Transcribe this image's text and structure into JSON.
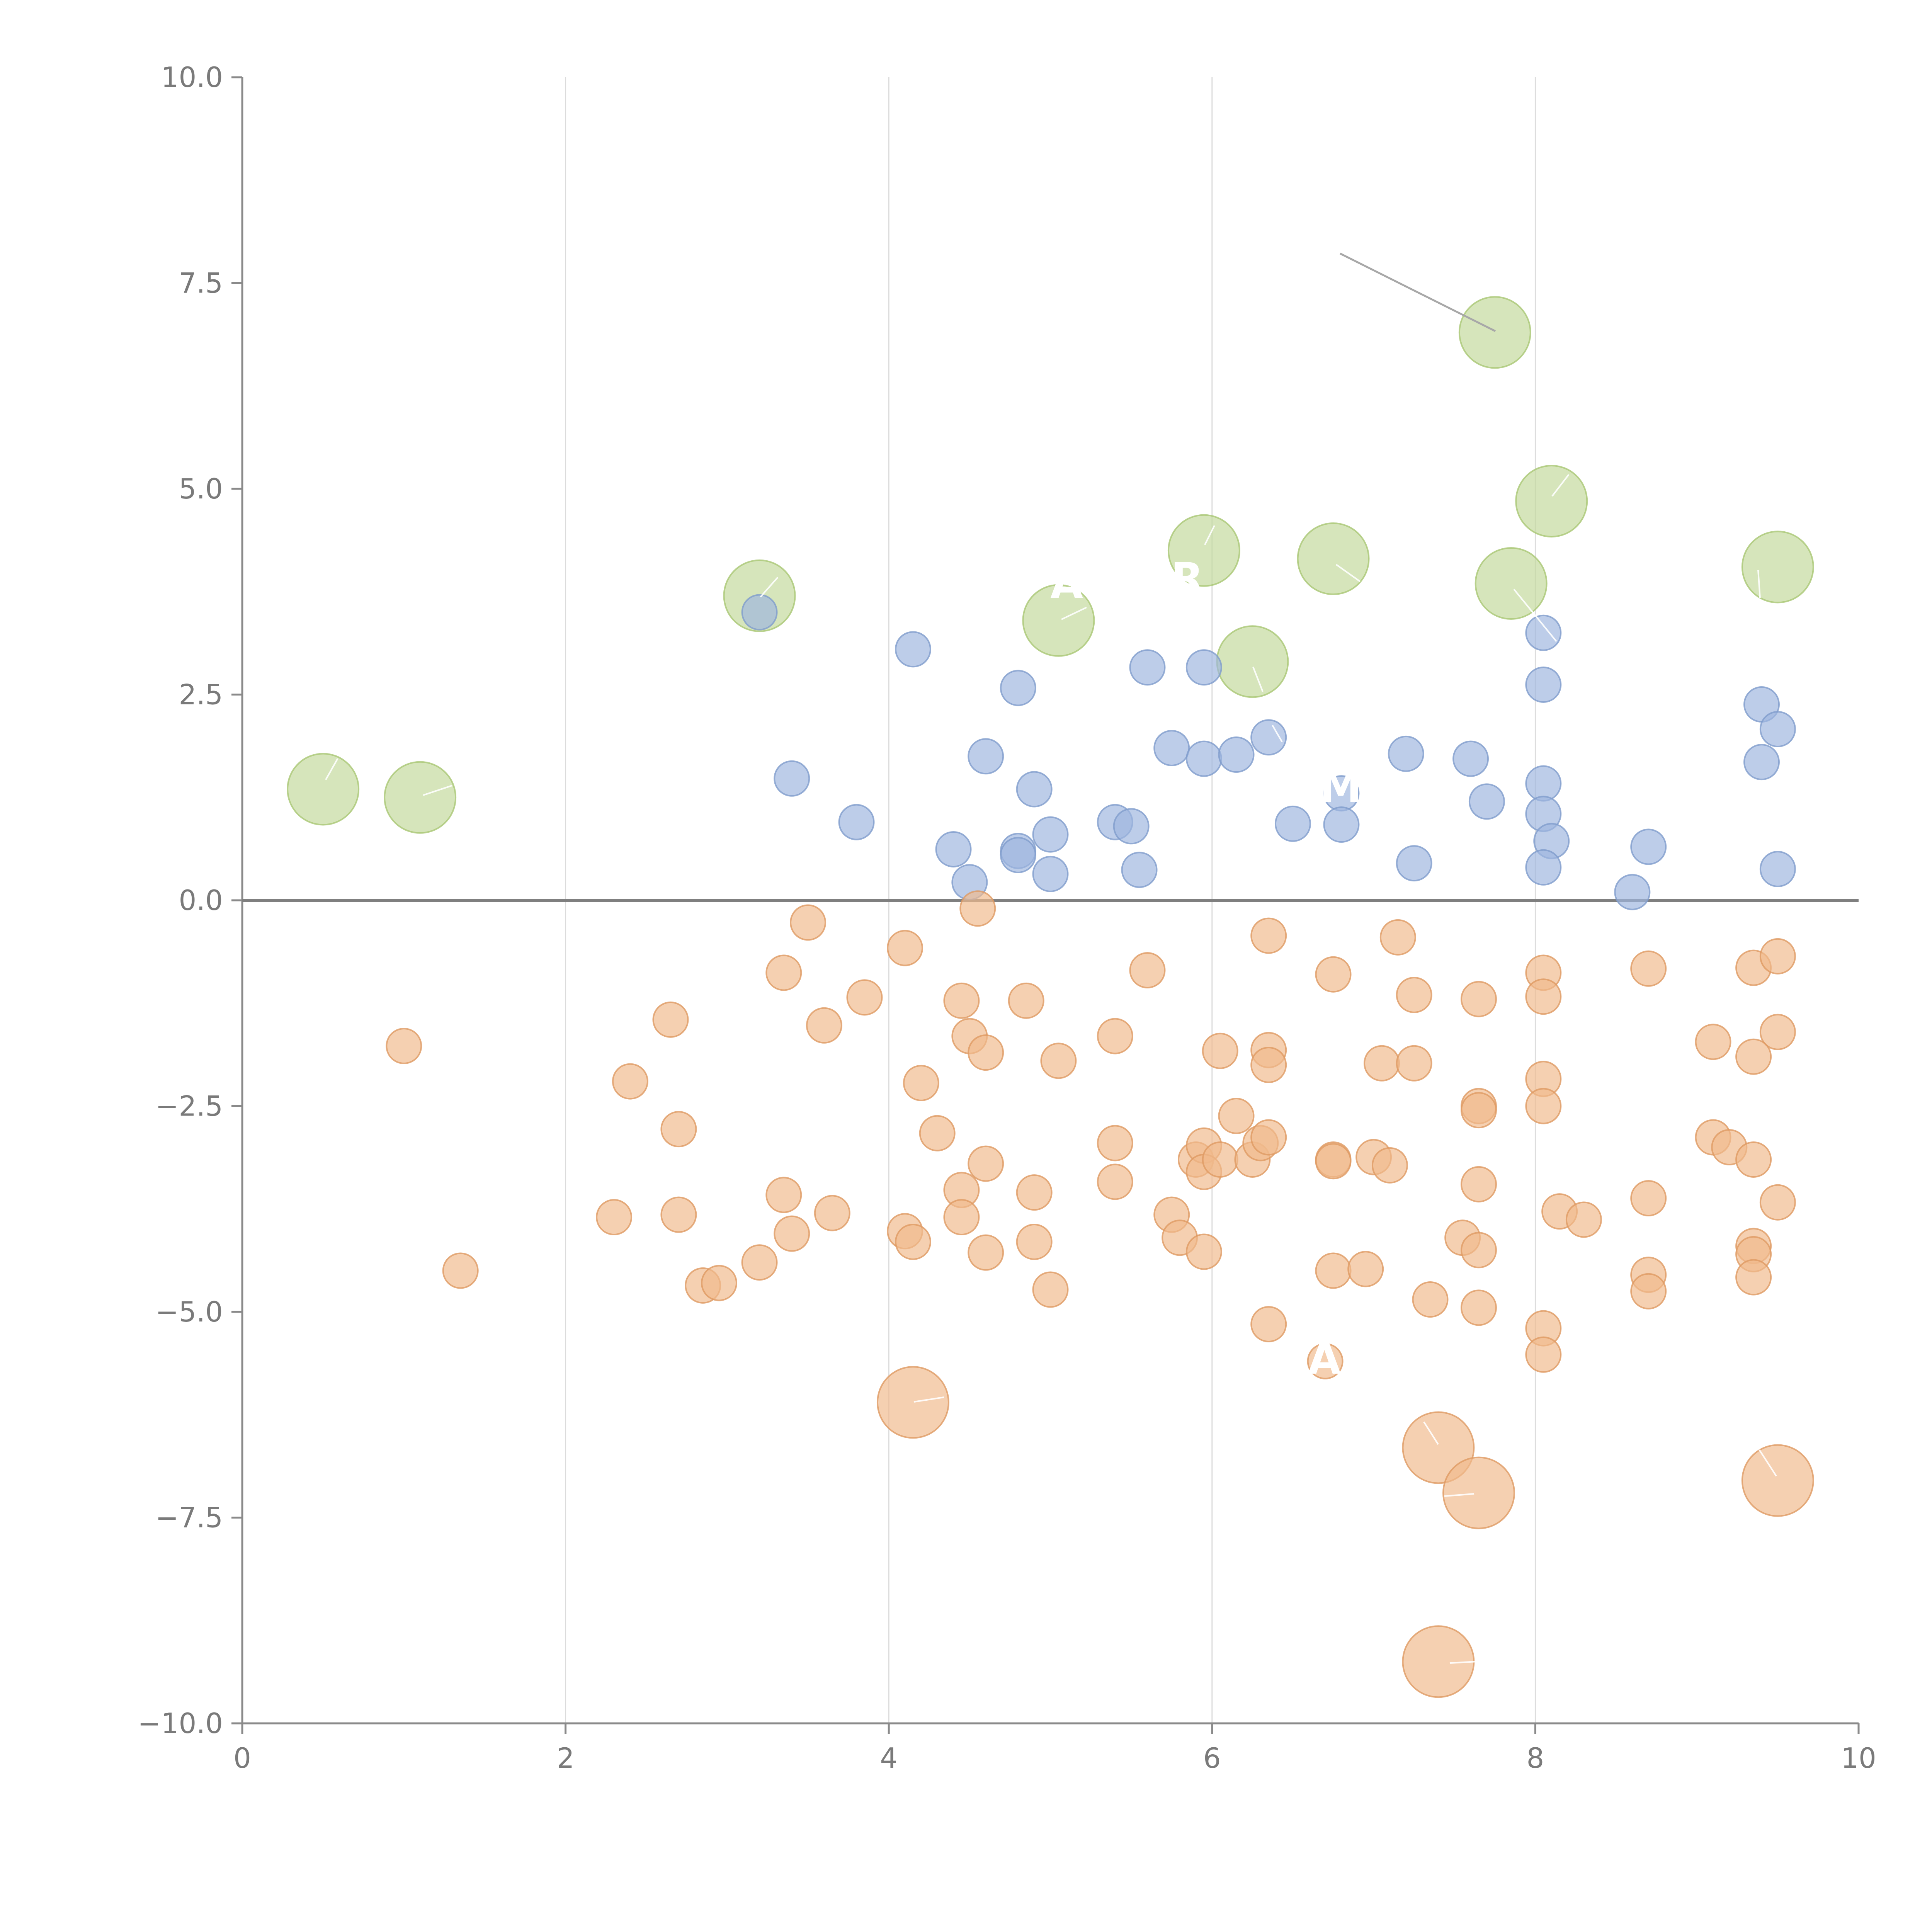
{
  "chart_data": {
    "type": "scatter",
    "title": "",
    "xlabel": "",
    "ylabel": "",
    "xlim": [
      0,
      10
    ],
    "ylim": [
      -10,
      10
    ],
    "x_ticks": [
      "0",
      "2",
      "4",
      "6",
      "8",
      "10"
    ],
    "y_ticks": [
      "10.0",
      "7.5",
      "5.0",
      "2.5",
      "0.0",
      "−2.5",
      "−5.0",
      "−7.5",
      "−10.0"
    ],
    "x_tick_values": [
      0,
      2,
      4,
      6,
      8,
      10
    ],
    "y_tick_values": [
      10,
      7.5,
      5,
      2.5,
      0,
      -2.5,
      -5,
      -7.5,
      -10
    ],
    "grid": "vertical",
    "reference_line_y": 0,
    "series": [
      {
        "color": "#c3d99b",
        "stroke": "#a9c774",
        "marker": "large-circle",
        "points": [
          [
            0.5,
            1.35
          ],
          [
            1.1,
            1.25
          ],
          [
            3.2,
            3.7
          ],
          [
            5.05,
            3.4
          ],
          [
            5.95,
            4.25
          ],
          [
            6.25,
            2.9
          ],
          [
            6.75,
            4.15
          ],
          [
            7.75,
            6.9
          ],
          [
            7.85,
            3.85
          ],
          [
            8.1,
            4.85
          ],
          [
            9.5,
            4.05
          ]
        ]
      },
      {
        "color": "#9db6de",
        "stroke": "#7f9ccc",
        "marker": "small-circle",
        "points": [
          [
            3.2,
            3.5
          ],
          [
            4.15,
            3.05
          ],
          [
            3.4,
            1.48
          ],
          [
            3.8,
            0.95
          ],
          [
            4.4,
            0.62
          ],
          [
            4.5,
            0.22
          ],
          [
            4.6,
            1.75
          ],
          [
            4.8,
            2.58
          ],
          [
            4.8,
            0.6
          ],
          [
            4.8,
            0.55
          ],
          [
            4.9,
            1.35
          ],
          [
            5.0,
            0.8
          ],
          [
            5.0,
            0.32
          ],
          [
            5.4,
            0.95
          ],
          [
            5.5,
            0.9
          ],
          [
            5.55,
            0.37
          ],
          [
            5.6,
            2.83
          ],
          [
            5.75,
            1.85
          ],
          [
            5.95,
            2.83
          ],
          [
            5.95,
            1.72
          ],
          [
            6.15,
            1.77
          ],
          [
            6.35,
            1.98
          ],
          [
            6.5,
            0.93
          ],
          [
            6.8,
            1.3
          ],
          [
            6.8,
            0.92
          ],
          [
            7.2,
            1.78
          ],
          [
            7.25,
            0.45
          ],
          [
            7.6,
            1.72
          ],
          [
            7.7,
            1.2
          ],
          [
            8.05,
            3.25
          ],
          [
            8.05,
            2.62
          ],
          [
            8.05,
            1.42
          ],
          [
            8.05,
            1.05
          ],
          [
            8.1,
            0.72
          ],
          [
            8.05,
            0.4
          ],
          [
            8.6,
            0.1
          ],
          [
            8.7,
            0.65
          ],
          [
            9.4,
            2.38
          ],
          [
            9.4,
            1.68
          ],
          [
            9.5,
            2.08
          ],
          [
            9.5,
            0.38
          ]
        ]
      },
      {
        "color": "#f0b98c",
        "stroke": "#df9a63",
        "marker": "small-circle",
        "points": [
          [
            1.0,
            -1.77
          ],
          [
            1.35,
            -4.5
          ],
          [
            2.3,
            -3.85
          ],
          [
            2.4,
            -2.2
          ],
          [
            2.65,
            -1.45
          ],
          [
            2.7,
            -3.82
          ],
          [
            2.7,
            -2.78
          ],
          [
            2.85,
            -4.68
          ],
          [
            2.95,
            -4.65
          ],
          [
            3.2,
            -4.4
          ],
          [
            3.35,
            -0.88
          ],
          [
            3.35,
            -3.58
          ],
          [
            3.4,
            -4.05
          ],
          [
            3.5,
            -0.27
          ],
          [
            3.6,
            -1.52
          ],
          [
            3.65,
            -3.8
          ],
          [
            3.85,
            -1.18
          ],
          [
            4.1,
            -0.58
          ],
          [
            4.1,
            -4.02
          ],
          [
            4.15,
            -4.15
          ],
          [
            4.2,
            -2.22
          ],
          [
            4.3,
            -2.83
          ],
          [
            4.45,
            -1.22
          ],
          [
            4.45,
            -3.52
          ],
          [
            4.45,
            -3.85
          ],
          [
            4.5,
            -1.65
          ],
          [
            4.55,
            -0.1
          ],
          [
            4.6,
            -3.2
          ],
          [
            4.6,
            -4.28
          ],
          [
            4.6,
            -1.85
          ],
          [
            4.85,
            -1.22
          ],
          [
            4.9,
            -3.55
          ],
          [
            4.9,
            -4.15
          ],
          [
            5.0,
            -4.73
          ],
          [
            5.05,
            -1.95
          ],
          [
            5.4,
            -1.65
          ],
          [
            5.4,
            -2.95
          ],
          [
            5.4,
            -3.42
          ],
          [
            5.6,
            -0.85
          ],
          [
            5.75,
            -3.82
          ],
          [
            5.8,
            -4.1
          ],
          [
            5.9,
            -3.15
          ],
          [
            5.95,
            -2.98
          ],
          [
            5.95,
            -3.3
          ],
          [
            5.95,
            -4.27
          ],
          [
            6.05,
            -1.83
          ],
          [
            6.05,
            -3.15
          ],
          [
            6.15,
            -2.62
          ],
          [
            6.25,
            -3.15
          ],
          [
            6.3,
            -2.95
          ],
          [
            6.35,
            -0.43
          ],
          [
            6.35,
            -1.82
          ],
          [
            6.35,
            -2.0
          ],
          [
            6.35,
            -2.88
          ],
          [
            6.35,
            -5.15
          ],
          [
            6.7,
            -5.6
          ],
          [
            6.75,
            -0.9
          ],
          [
            6.75,
            -3.15
          ],
          [
            6.75,
            -3.17
          ],
          [
            6.75,
            -4.5
          ],
          [
            6.95,
            -4.48
          ],
          [
            7.0,
            -3.12
          ],
          [
            7.05,
            -1.98
          ],
          [
            7.1,
            -3.22
          ],
          [
            7.15,
            -0.45
          ],
          [
            7.25,
            -1.98
          ],
          [
            7.25,
            -1.15
          ],
          [
            7.35,
            -4.85
          ],
          [
            7.55,
            -4.1
          ],
          [
            7.65,
            -1.2
          ],
          [
            7.65,
            -2.5
          ],
          [
            7.65,
            -2.55
          ],
          [
            7.65,
            -3.45
          ],
          [
            7.65,
            -4.25
          ],
          [
            7.65,
            -4.95
          ],
          [
            8.05,
            -0.88
          ],
          [
            8.05,
            -1.17
          ],
          [
            8.05,
            -2.17
          ],
          [
            8.05,
            -2.5
          ],
          [
            8.05,
            -5.2
          ],
          [
            8.05,
            -5.52
          ],
          [
            8.15,
            -3.78
          ],
          [
            8.3,
            -3.88
          ],
          [
            8.7,
            -0.83
          ],
          [
            8.7,
            -3.62
          ],
          [
            8.7,
            -4.55
          ],
          [
            8.7,
            -4.75
          ],
          [
            9.1,
            -1.72
          ],
          [
            9.1,
            -2.88
          ],
          [
            9.2,
            -3.0
          ],
          [
            9.35,
            -0.82
          ],
          [
            9.35,
            -1.9
          ],
          [
            9.35,
            -3.15
          ],
          [
            9.35,
            -4.2
          ],
          [
            9.35,
            -4.3
          ],
          [
            9.35,
            -4.58
          ],
          [
            9.5,
            -0.68
          ],
          [
            9.5,
            -1.6
          ],
          [
            9.5,
            -3.67
          ]
        ]
      },
      {
        "color": "#f0b98c",
        "stroke": "#df9a63",
        "marker": "large-circle",
        "points": [
          [
            4.15,
            -6.1
          ],
          [
            7.4,
            -6.65
          ],
          [
            7.65,
            -7.2
          ],
          [
            9.5,
            -7.05
          ],
          [
            7.4,
            -9.25
          ]
        ]
      }
    ]
  }
}
